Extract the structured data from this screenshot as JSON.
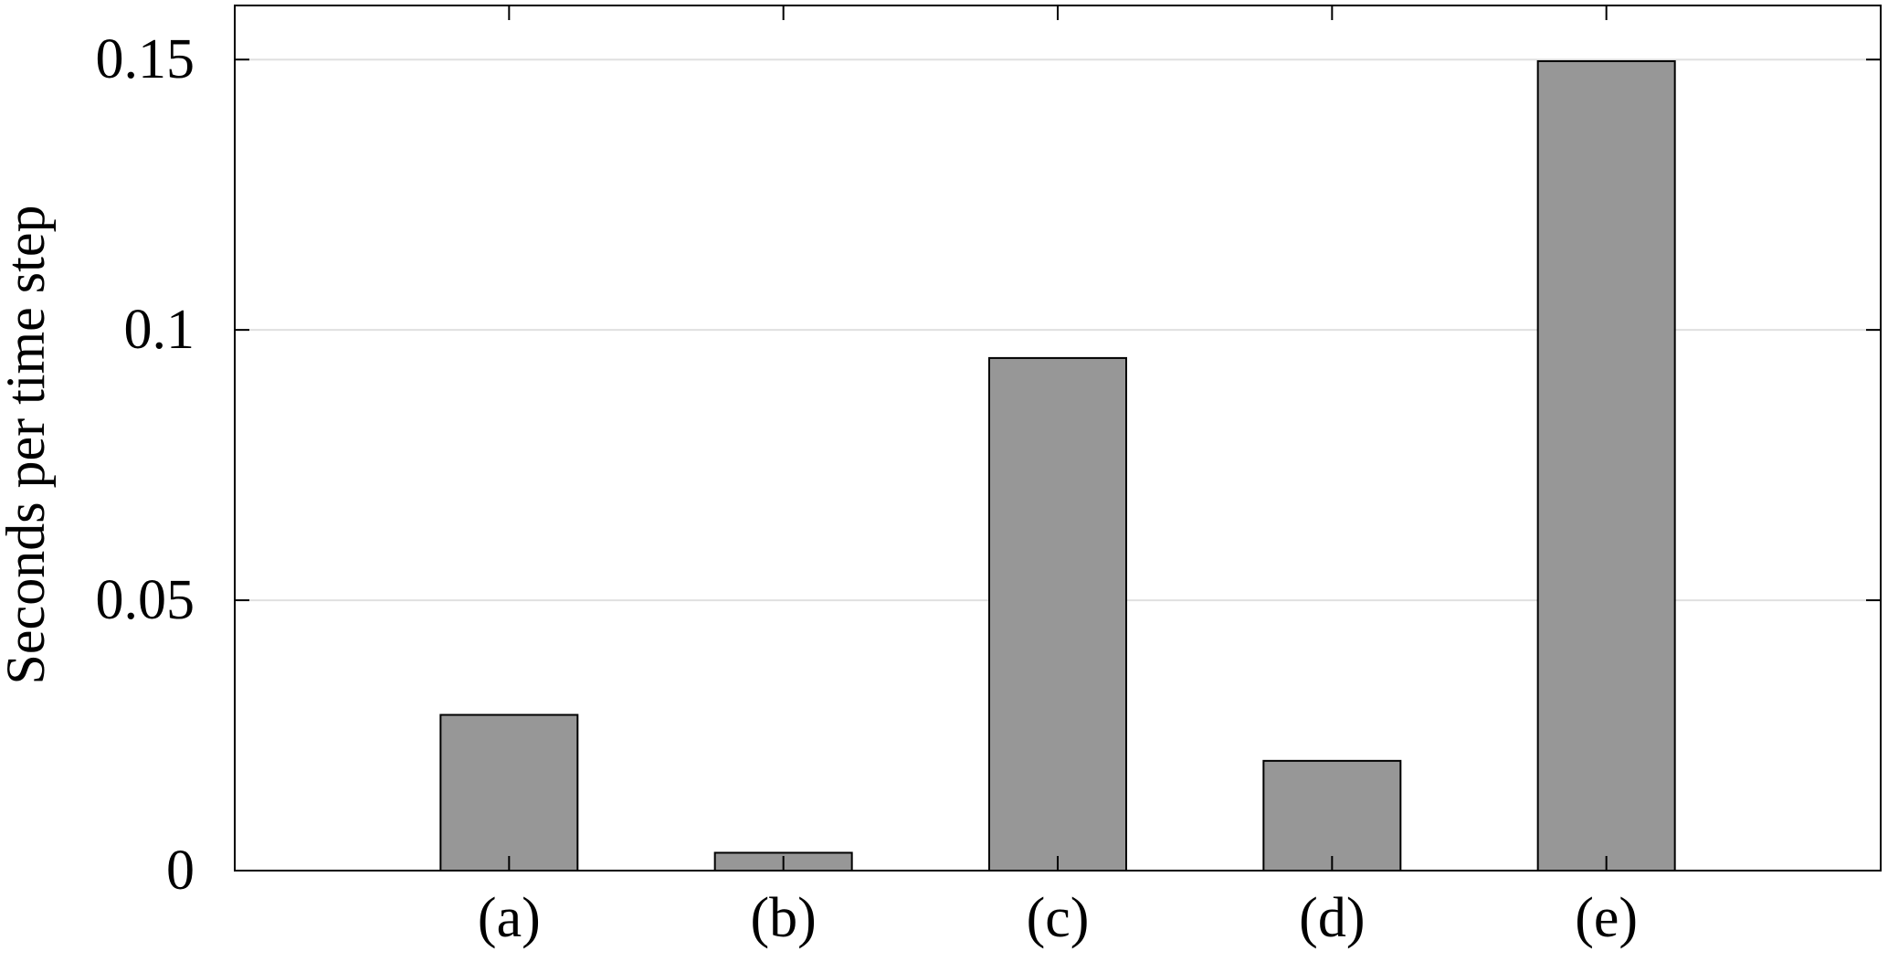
{
  "chart_data": {
    "type": "bar",
    "categories": [
      "(a)",
      "(b)",
      "(c)",
      "(d)",
      "(e)"
    ],
    "values": [
      0.0288,
      0.0033,
      0.0948,
      0.0203,
      0.1497
    ],
    "title": "",
    "xlabel": "",
    "ylabel": "Seconds per time step",
    "ylim": [
      0,
      0.16
    ],
    "xlim": [
      0,
      6
    ],
    "yticks": [
      0,
      0.05,
      0.1,
      0.15
    ],
    "ytick_labels": [
      "0",
      "0.05",
      "0.1",
      "0.15"
    ],
    "grid": "horizontal",
    "legend": "none",
    "colors": {
      "bar_fill": "#979797",
      "bar_stroke": "#000000",
      "grid": "#e0e0e0",
      "axis": "#000000"
    }
  }
}
